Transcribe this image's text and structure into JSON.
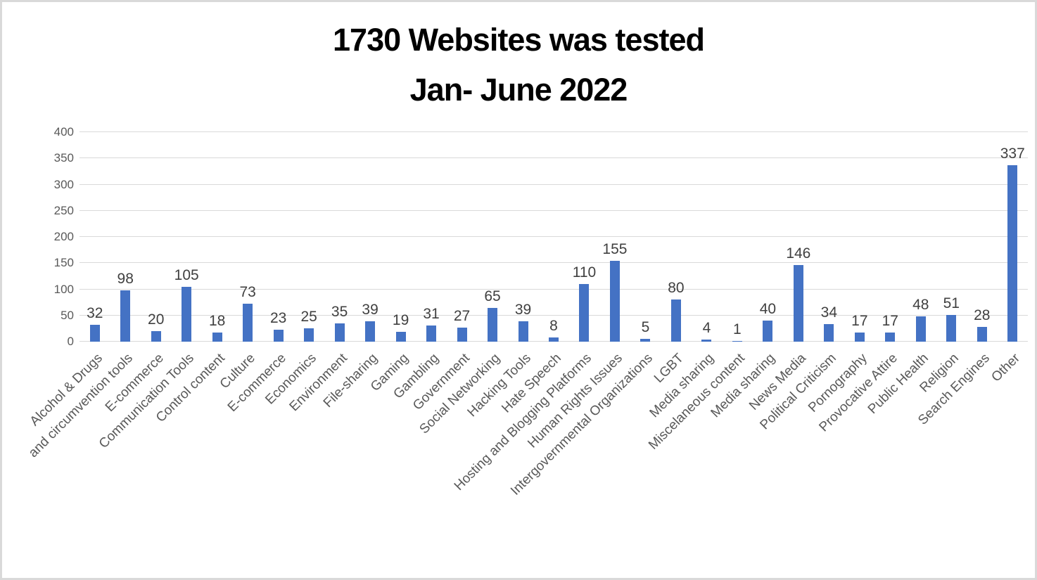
{
  "chart_data": {
    "type": "bar",
    "title": "1730 Websites was tested",
    "subtitle": "Jan- June 2022",
    "categories": [
      "Alcohol & Drugs",
      "and circumvention tools",
      "E-commerce",
      "Communication Tools",
      "Control content",
      "Culture",
      "E-commerce",
      "Economics",
      "Environment",
      "File-sharing",
      "Gaming",
      "Gambling",
      "Government",
      "Social Networking",
      "Hacking Tools",
      "Hate Speech",
      "Hosting and Blogging Platforms",
      "Human Rights Issues",
      "Intergovernmental Organizations",
      "LGBT",
      "Media sharing",
      "Miscelaneous content",
      "Media sharing",
      "News Media",
      "Political Criticism",
      "Pornography",
      "Provocative Attire",
      "Public Health",
      "Religion",
      "Search Engines",
      "Other"
    ],
    "values": [
      32,
      98,
      20,
      105,
      18,
      73,
      23,
      25,
      35,
      39,
      19,
      31,
      27,
      65,
      39,
      8,
      110,
      155,
      5,
      80,
      4,
      1,
      40,
      146,
      34,
      17,
      17,
      48,
      51,
      28,
      337
    ],
    "total": 1730,
    "xlabel": "",
    "ylabel": "",
    "ylim": [
      0,
      400
    ],
    "ytick_step": 50,
    "yticks": [
      0,
      50,
      100,
      150,
      200,
      250,
      300,
      350,
      400
    ],
    "grid": true,
    "legend": "none",
    "value_labels_shown": true,
    "bar_color": "#4472c4",
    "gridline_color": "#d9d9d9",
    "value_label_color": "#404040",
    "axis_text_color": "#595959",
    "background_color": "#ffffff",
    "border_color": "#d9d9d9"
  }
}
